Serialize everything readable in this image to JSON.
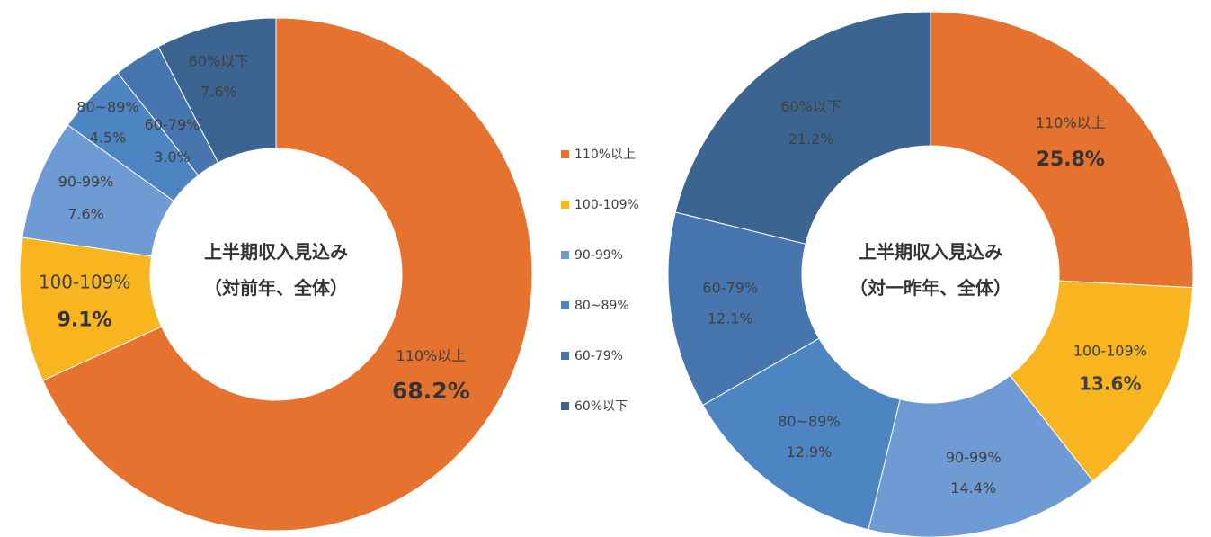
{
  "colors": [
    "#E5722F",
    "#F9B520",
    "#6F9BD4",
    "#4D85C3",
    "#4775AE",
    "#3B6491"
  ],
  "legend": [
    "110%以上",
    "100-109%",
    "90-99%",
    "80~89%",
    "60-79%",
    "60%以下"
  ],
  "chart_data": [
    {
      "type": "donut",
      "title_line1": "上半期収入見込み",
      "title_line2": "（対前年、全体）",
      "categories": [
        "110%以上",
        "100-109%",
        "90-99%",
        "80~89%",
        "60-79%",
        "60%以下"
      ],
      "values": [
        68.2,
        9.1,
        7.6,
        4.5,
        3.0,
        7.6
      ],
      "labels": [
        "68.2%",
        "9.1%",
        "7.6%",
        "4.5%",
        "3.0%",
        "7.6%"
      ]
    },
    {
      "type": "donut",
      "title_line1": "上半期収入見込み",
      "title_line2": "（対一昨年、全体）",
      "categories": [
        "110%以上",
        "100-109%",
        "90-99%",
        "80~89%",
        "60-79%",
        "60%以下"
      ],
      "values": [
        25.8,
        13.6,
        14.4,
        12.9,
        12.1,
        21.2
      ],
      "labels": [
        "25.8%",
        "13.6%",
        "14.4%",
        "12.9%",
        "12.1%",
        "21.2%"
      ]
    }
  ]
}
